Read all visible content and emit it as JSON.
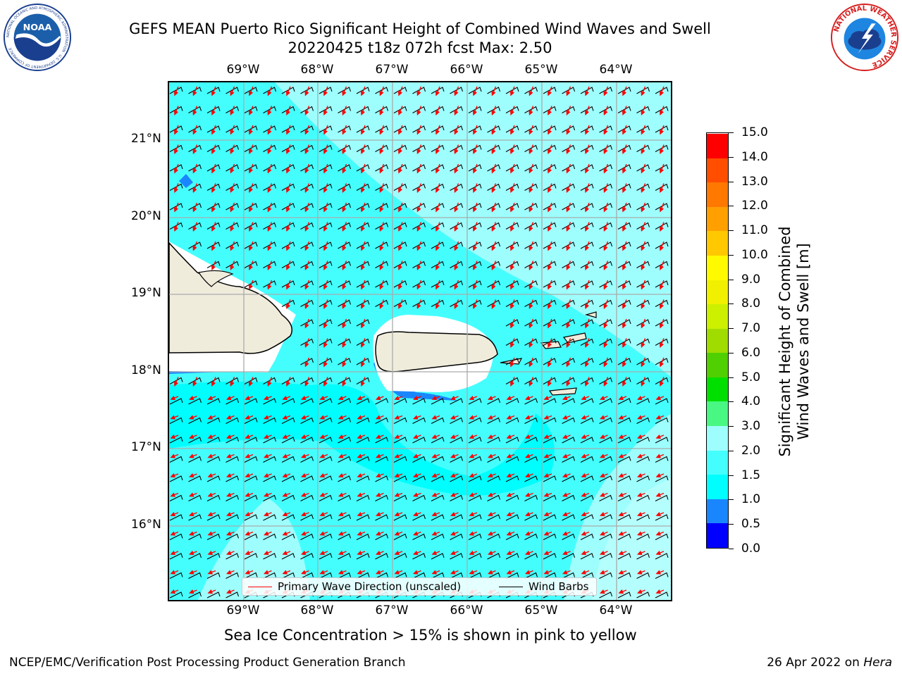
{
  "header": {
    "title_line1": "GEFS MEAN Puerto Rico Significant Height of Combined Wind Waves and Swell",
    "title_line2": "20220425 t18z 072h fcst   Max: 2.50"
  },
  "logos": {
    "noaa": "NOAA",
    "noaa_ring_text": "NATIONAL OCEANIC AND ATMOSPHERIC ADMINISTRATION · U.S. DEPARTMENT OF COMMERCE",
    "nws_ring_text": "NATIONAL WEATHER SERVICE"
  },
  "map": {
    "lon_labels": [
      "69°W",
      "68°W",
      "67°W",
      "66°W",
      "65°W",
      "64°W"
    ],
    "lat_labels": [
      "21°N",
      "20°N",
      "19°N",
      "18°N",
      "17°N",
      "16°N"
    ],
    "colors": {
      "ocean_1_5_2_0": "#44fefe",
      "ocean_2_0_3_0": "#9efefe",
      "ocean_1_0_1_5": "#00fefe",
      "ocean_0_5_1_0": "#1a86fe",
      "land": "#efecdc",
      "wave_arrow": "#ff0000",
      "wind_barb": "#000000",
      "grid": "#aaaaaa"
    }
  },
  "legend": {
    "wave_direction": "Primary Wave Direction (unscaled)",
    "wind_barbs": "Wind Barbs"
  },
  "colorbar": {
    "title_line1": "Significant Height of Combined",
    "title_line2": "Wind Waves and Swell [m]",
    "levels": [
      "0.0",
      "0.5",
      "1.0",
      "1.5",
      "2.0",
      "3.0",
      "4.0",
      "5.0",
      "6.0",
      "7.0",
      "8.0",
      "9.0",
      "10.0",
      "11.0",
      "12.0",
      "13.0",
      "14.0",
      "15.0"
    ],
    "colors": [
      "#0000fe",
      "#1a86fe",
      "#00fefe",
      "#44fefe",
      "#9efefe",
      "#48f882",
      "#00e000",
      "#50d000",
      "#a0dc00",
      "#ccf000",
      "#f0f000",
      "#fffa00",
      "#ffc800",
      "#ffa000",
      "#ff7800",
      "#ff4e00",
      "#ff0000"
    ]
  },
  "footnote": "Sea Ice Concentration > 15% is shown in pink to yellow",
  "footer": {
    "left": "NCEP/EMC/Verification Post Processing Product Generation Branch",
    "right_prefix": "26 Apr 2022 on ",
    "right_host": "Hera"
  }
}
